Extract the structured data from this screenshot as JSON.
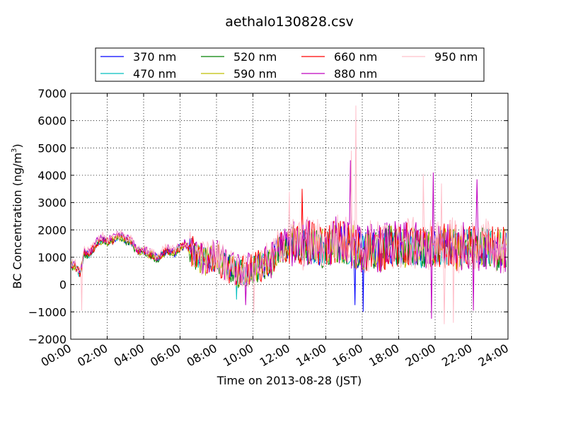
{
  "chart_data": {
    "type": "line",
    "title": "aethalo130828.csv",
    "xlabel": "Time on 2013-08-28 (JST)",
    "ylabel": "BC Concentration (ng/m",
    "ylabel_sup": "3",
    "ylabel_close": ")",
    "xlim": [
      0,
      24
    ],
    "ylim": [
      -2000,
      7000
    ],
    "x_ticks": [
      "00:00",
      "02:00",
      "04:00",
      "06:00",
      "08:00",
      "10:00",
      "12:00",
      "14:00",
      "16:00",
      "18:00",
      "20:00",
      "22:00",
      "24:00"
    ],
    "y_ticks": [
      "−2000",
      "−1000",
      "0",
      "1000",
      "2000",
      "3000",
      "4000",
      "5000",
      "6000",
      "7000"
    ],
    "y_tick_values": [
      -2000,
      -1000,
      0,
      1000,
      2000,
      3000,
      4000,
      5000,
      6000,
      7000
    ],
    "grid": true,
    "legend_position": "top",
    "base_x": [
      0,
      0.25,
      0.5,
      0.75,
      1,
      1.25,
      1.5,
      1.75,
      2,
      2.25,
      2.5,
      2.75,
      3,
      3.25,
      3.5,
      3.75,
      4,
      4.25,
      4.5,
      4.75,
      5,
      5.25,
      5.5,
      5.75,
      6,
      6.25,
      6.5,
      6.75,
      7,
      7.25,
      7.5,
      7.75,
      8,
      8.25,
      8.5,
      8.75,
      9,
      9.25,
      9.5,
      9.75,
      10,
      10.25,
      10.5,
      10.75,
      11,
      11.25,
      11.5,
      11.75,
      12,
      12.25,
      12.5,
      12.75,
      13,
      13.25,
      13.5,
      13.75,
      14,
      14.25,
      14.5,
      14.75,
      15,
      15.25,
      15.5,
      15.75,
      16,
      16.25,
      16.5,
      16.75,
      17,
      17.25,
      17.5,
      17.75,
      18,
      18.25,
      18.5,
      18.75,
      19,
      19.25,
      19.5,
      19.75,
      20,
      20.25,
      20.5,
      20.75,
      21,
      21.25,
      21.5,
      21.75,
      22,
      22.25,
      22.5,
      22.75,
      23,
      23.25,
      23.5
    ],
    "base_values": [
      700,
      650,
      400,
      1150,
      1100,
      1300,
      1550,
      1650,
      1550,
      1600,
      1700,
      1750,
      1650,
      1600,
      1350,
      1200,
      1250,
      1150,
      1050,
      950,
      1100,
      1250,
      1200,
      1150,
      1350,
      1450,
      1300,
      1150,
      950,
      900,
      850,
      950,
      1000,
      800,
      700,
      600,
      500,
      400,
      450,
      500,
      600,
      650,
      700,
      750,
      800,
      1200,
      1350,
      1400,
      1450,
      1500,
      1400,
      1350,
      1450,
      1500,
      1400,
      1300,
      1450,
      1500,
      1600,
      1550,
      1500,
      1450,
      1400,
      1300,
      1200,
      1250,
      1350,
      1300,
      1250,
      1350,
      1450,
      1400,
      1300,
      1350,
      1450,
      1400,
      1300,
      1250,
      1350,
      1400,
      1350,
      1300,
      1400,
      1450,
      1350,
      1300,
      1350,
      1400,
      1350,
      1300,
      1350,
      1400,
      1350,
      1300,
      1250
    ],
    "series": [
      {
        "name": "370 nm",
        "color": "#0000ff",
        "amp": [
          150,
          500,
          700
        ],
        "offset": 0
      },
      {
        "name": "470 nm",
        "color": "#00bfbf",
        "amp": [
          150,
          500,
          700
        ],
        "offset": 0
      },
      {
        "name": "520 nm",
        "color": "#008000",
        "amp": [
          150,
          550,
          750
        ],
        "offset": -30
      },
      {
        "name": "590 nm",
        "color": "#bfbf00",
        "amp": [
          160,
          550,
          800
        ],
        "offset": 0
      },
      {
        "name": "660 nm",
        "color": "#ff0000",
        "amp": [
          160,
          600,
          850
        ],
        "offset": 20
      },
      {
        "name": "880 nm",
        "color": "#bf00bf",
        "amp": [
          170,
          650,
          900
        ],
        "offset": 60
      },
      {
        "name": "950 nm",
        "color": "#ffc0cb",
        "amp": [
          180,
          700,
          1000
        ],
        "offset": 100
      }
    ],
    "spikes": [
      {
        "series": "950 nm",
        "x": 15.65,
        "y": 6550
      },
      {
        "series": "950 nm",
        "x": 15.4,
        "y": 4900
      },
      {
        "series": "880 nm",
        "x": 15.35,
        "y": 4550
      },
      {
        "series": "880 nm",
        "x": 19.9,
        "y": 4100
      },
      {
        "series": "950 nm",
        "x": 19.35,
        "y": 4050
      },
      {
        "series": "950 nm",
        "x": 20.35,
        "y": 3700
      },
      {
        "series": "880 nm",
        "x": 22.3,
        "y": 3850
      },
      {
        "series": "660 nm",
        "x": 12.7,
        "y": 3500
      },
      {
        "series": "950 nm",
        "x": 12.0,
        "y": 3400
      },
      {
        "series": "950 nm",
        "x": 0.6,
        "y": -950
      },
      {
        "series": "470 nm",
        "x": 9.1,
        "y": -550
      },
      {
        "series": "880 nm",
        "x": 9.6,
        "y": -750
      },
      {
        "series": "950 nm",
        "x": 10.05,
        "y": -1050
      },
      {
        "series": "370 nm",
        "x": 16.05,
        "y": -1000
      },
      {
        "series": "370 nm",
        "x": 15.6,
        "y": -750
      },
      {
        "series": "880 nm",
        "x": 19.8,
        "y": -1250
      },
      {
        "series": "950 nm",
        "x": 20.5,
        "y": -1450
      },
      {
        "series": "950 nm",
        "x": 21.0,
        "y": -1400
      },
      {
        "series": "880 nm",
        "x": 22.1,
        "y": -950
      }
    ]
  }
}
